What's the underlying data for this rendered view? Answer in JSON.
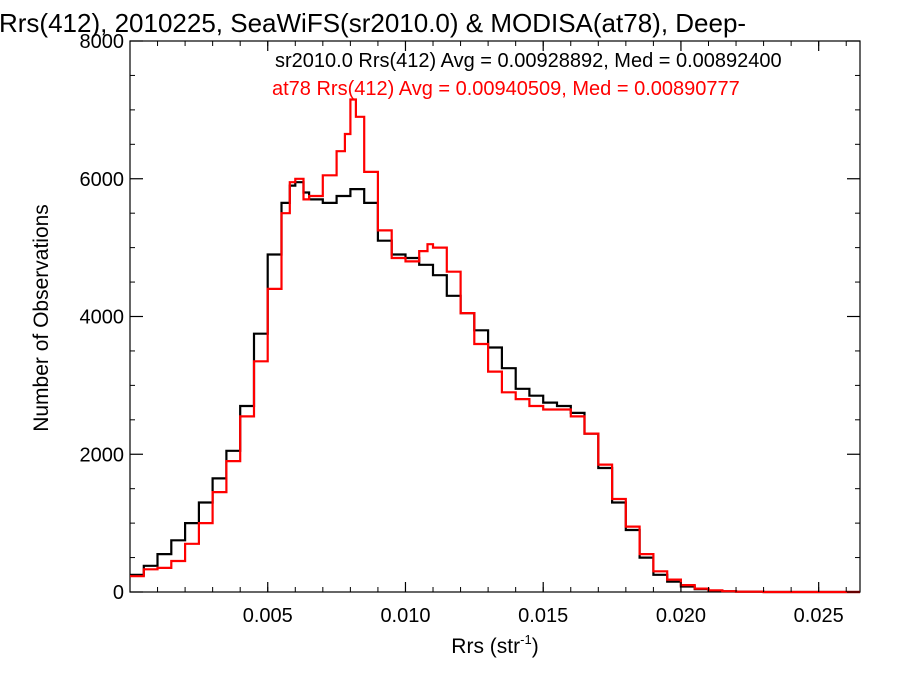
{
  "chart_data": {
    "type": "line",
    "title": "Rrs(412), 2010225, SeaWiFS(sr2010.0) & MODISA(at78), Deep-",
    "xlabel": "Rrs (str",
    "xlabel_sup": "-1",
    "xlabel_close": ")",
    "ylabel": "Number of Observations",
    "xlim": [
      0.0,
      0.0265
    ],
    "ylim": [
      0,
      8000
    ],
    "grid": false,
    "x_ticks": [
      0.005,
      0.01,
      0.015,
      0.02,
      0.025
    ],
    "x_tick_labels": [
      "0.005",
      "0.010",
      "0.015",
      "0.020",
      "0.025"
    ],
    "y_ticks": [
      0,
      2000,
      4000,
      6000,
      8000
    ],
    "y_tick_labels": [
      "0",
      "2000",
      "4000",
      "6000",
      "8000"
    ],
    "annotations": [
      {
        "text": "sr2010.0 Rrs(412) Avg = 0.00928892, Med = 0.00892400",
        "color": "#000000"
      },
      {
        "text": "at78 Rrs(412) Avg = 0.00940509, Med = 0.00890777",
        "color": "#ff0000"
      }
    ],
    "series": [
      {
        "name": "sr2010.0",
        "color": "#000000",
        "x": [
          0.0,
          0.0005,
          0.001,
          0.0015,
          0.002,
          0.0025,
          0.003,
          0.0035,
          0.004,
          0.0045,
          0.005,
          0.0055,
          0.0058,
          0.006,
          0.0063,
          0.0065,
          0.007,
          0.0075,
          0.008,
          0.0085,
          0.009,
          0.0095,
          0.01,
          0.0105,
          0.011,
          0.0115,
          0.012,
          0.0125,
          0.013,
          0.0135,
          0.014,
          0.0145,
          0.015,
          0.0155,
          0.016,
          0.0165,
          0.017,
          0.0175,
          0.018,
          0.0185,
          0.019,
          0.0195,
          0.02,
          0.0205,
          0.021,
          0.0215,
          0.022,
          0.023,
          0.024,
          0.025,
          0.0265
        ],
        "y": [
          250,
          380,
          550,
          750,
          1000,
          1300,
          1650,
          2050,
          2700,
          3750,
          4900,
          5650,
          5900,
          5950,
          5800,
          5700,
          5650,
          5750,
          5850,
          5650,
          5100,
          4900,
          4850,
          4750,
          4600,
          4300,
          4050,
          3800,
          3550,
          3250,
          2950,
          2850,
          2750,
          2700,
          2600,
          2300,
          1800,
          1300,
          900,
          500,
          250,
          150,
          80,
          40,
          20,
          10,
          5,
          0,
          0,
          0,
          0
        ]
      },
      {
        "name": "at78",
        "color": "#ff0000",
        "x": [
          0.0,
          0.0005,
          0.001,
          0.0015,
          0.002,
          0.0025,
          0.003,
          0.0035,
          0.004,
          0.0045,
          0.005,
          0.0055,
          0.0058,
          0.006,
          0.0063,
          0.0065,
          0.007,
          0.0075,
          0.0078,
          0.008,
          0.0082,
          0.0085,
          0.009,
          0.0095,
          0.01,
          0.0105,
          0.0108,
          0.011,
          0.0115,
          0.012,
          0.0125,
          0.013,
          0.0135,
          0.014,
          0.0145,
          0.015,
          0.0155,
          0.016,
          0.0165,
          0.017,
          0.0175,
          0.018,
          0.0185,
          0.019,
          0.0195,
          0.02,
          0.0205,
          0.021,
          0.0215,
          0.022,
          0.023,
          0.024,
          0.025,
          0.0265
        ],
        "y": [
          230,
          330,
          350,
          450,
          700,
          1000,
          1450,
          1900,
          2550,
          3350,
          4400,
          5500,
          5950,
          6000,
          5700,
          5750,
          6050,
          6400,
          6650,
          7150,
          6900,
          6100,
          5250,
          4850,
          4800,
          4950,
          5050,
          5000,
          4650,
          4050,
          3600,
          3200,
          2900,
          2800,
          2700,
          2650,
          2650,
          2550,
          2300,
          1850,
          1350,
          950,
          550,
          300,
          180,
          100,
          50,
          25,
          12,
          5,
          0,
          0,
          0,
          0
        ]
      }
    ]
  }
}
